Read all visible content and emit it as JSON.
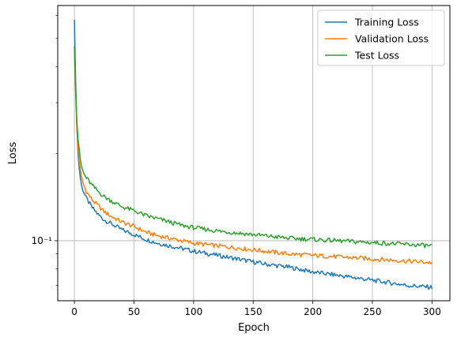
{
  "chart_data": {
    "type": "line",
    "title": "",
    "xlabel": "Epoch",
    "ylabel": "Loss",
    "y_scale": "log",
    "xlim": [
      -14,
      315
    ],
    "ylim": [
      0.062,
      0.65
    ],
    "x_ticks": [
      0,
      50,
      100,
      150,
      200,
      250,
      300
    ],
    "x_tick_labels": [
      "0",
      "50",
      "100",
      "150",
      "200",
      "250",
      "300"
    ],
    "y_ticks": [
      0.1
    ],
    "y_tick_labels": [
      "10⁻¹"
    ],
    "grid": true,
    "legend_position": "top-right",
    "x": [
      0,
      1,
      2,
      3,
      4,
      5,
      6,
      8,
      10,
      15,
      20,
      25,
      30,
      40,
      50,
      60,
      70,
      80,
      90,
      100,
      120,
      140,
      160,
      180,
      200,
      220,
      240,
      260,
      280,
      300
    ],
    "series": [
      {
        "name": "Training Loss",
        "color": "#1f77b4",
        "values": [
          0.58,
          0.36,
          0.25,
          0.2,
          0.18,
          0.165,
          0.155,
          0.147,
          0.14,
          0.13,
          0.123,
          0.118,
          0.115,
          0.109,
          0.105,
          0.101,
          0.098,
          0.096,
          0.094,
          0.092,
          0.089,
          0.086,
          0.083,
          0.081,
          0.078,
          0.076,
          0.074,
          0.072,
          0.07,
          0.069
        ]
      },
      {
        "name": "Validation Loss",
        "color": "#ff7f0e",
        "values": [
          0.46,
          0.33,
          0.25,
          0.21,
          0.19,
          0.175,
          0.165,
          0.155,
          0.148,
          0.138,
          0.132,
          0.126,
          0.122,
          0.116,
          0.112,
          0.107,
          0.104,
          0.102,
          0.1,
          0.098,
          0.096,
          0.094,
          0.092,
          0.09,
          0.089,
          0.088,
          0.087,
          0.086,
          0.085,
          0.084
        ]
      },
      {
        "name": "Test Loss",
        "color": "#2ca02c",
        "values": [
          0.47,
          0.34,
          0.26,
          0.225,
          0.205,
          0.19,
          0.18,
          0.17,
          0.165,
          0.155,
          0.148,
          0.142,
          0.138,
          0.131,
          0.127,
          0.122,
          0.119,
          0.116,
          0.113,
          0.111,
          0.108,
          0.106,
          0.104,
          0.102,
          0.101,
          0.1,
          0.099,
          0.098,
          0.097,
          0.096
        ]
      }
    ]
  }
}
